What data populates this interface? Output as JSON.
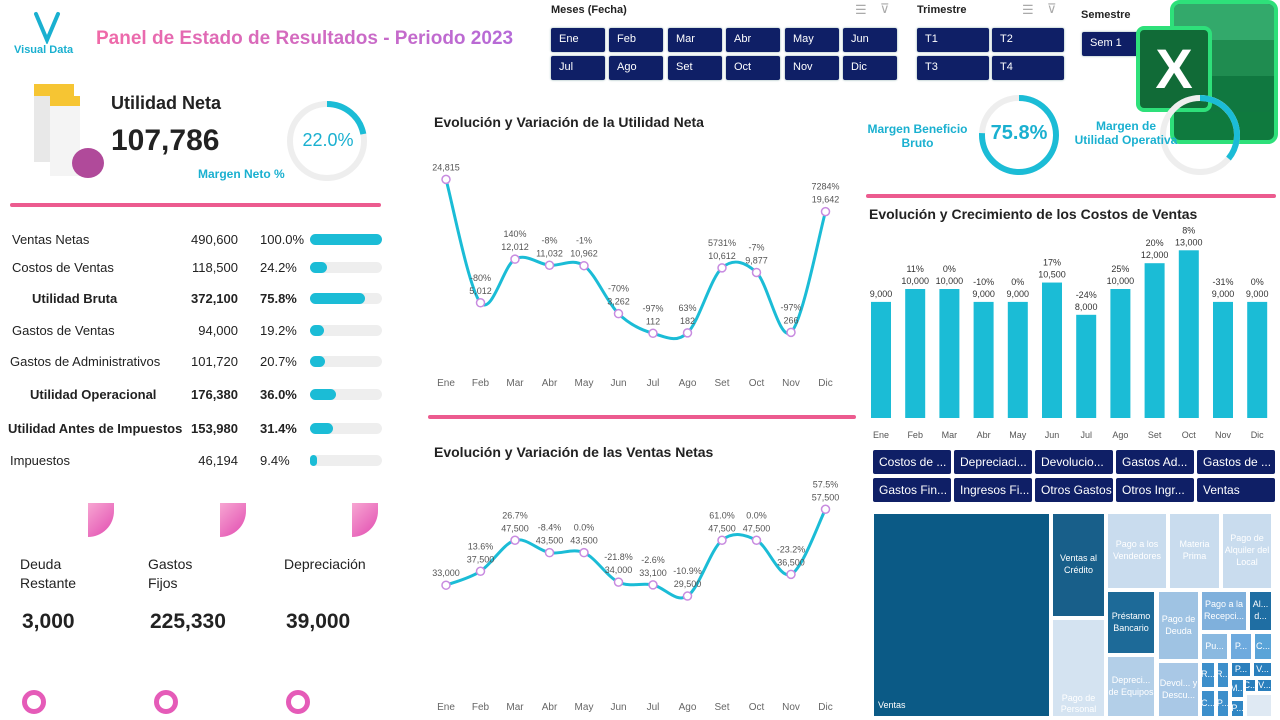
{
  "header": {
    "logo_text": "Visual Data",
    "title": "Panel de Estado de Resultados - Periodo 2023"
  },
  "slicers": {
    "months": {
      "title": "Meses (Fecha)",
      "items": [
        "Ene",
        "Feb",
        "Mar",
        "Abr",
        "May",
        "Jun",
        "Jul",
        "Ago",
        "Set",
        "Oct",
        "Nov",
        "Dic"
      ]
    },
    "quarters": {
      "title": "Trimestre",
      "items": [
        "T1",
        "T2",
        "T3",
        "T4"
      ]
    },
    "semester": {
      "title": "Semestre",
      "items": [
        "Sem 1"
      ]
    }
  },
  "net_income": {
    "label": "Utilidad Neta",
    "value": "107,786",
    "margin_label": "Margen Neto %",
    "margin_value": "22.0%",
    "margin_pct": 22.0
  },
  "income_rows": [
    {
      "label": "Ventas Netas",
      "value": "490,600",
      "pct": "100.0%",
      "fill": 100,
      "bold": false
    },
    {
      "label": "Costos de Ventas",
      "value": "118,500",
      "pct": "24.2%",
      "fill": 24.2,
      "bold": false
    },
    {
      "label": "Utilidad Bruta",
      "value": "372,100",
      "pct": "75.8%",
      "fill": 75.8,
      "bold": true
    },
    {
      "label": "Gastos de Ventas",
      "value": "94,000",
      "pct": "19.2%",
      "fill": 19.2,
      "bold": false
    },
    {
      "label": "Gastos de Administrativos",
      "value": "101,720",
      "pct": "20.7%",
      "fill": 20.7,
      "bold": false
    },
    {
      "label": "Utilidad Operacional",
      "value": "176,380",
      "pct": "36.0%",
      "fill": 36.0,
      "bold": true
    },
    {
      "label": "Utilidad Antes de Impuestos",
      "value": "153,980",
      "pct": "31.4%",
      "fill": 31.4,
      "bold": true
    },
    {
      "label": "Impuestos",
      "value": "46,194",
      "pct": "9.4%",
      "fill": 9.4,
      "bold": false
    }
  ],
  "bottom_kpis": [
    {
      "label_line1": "Deuda",
      "label_line2": "Restante",
      "value": "3,000"
    },
    {
      "label_line1": "Gastos",
      "label_line2": "Fijos",
      "value": "225,330"
    },
    {
      "label_line1": "Depreciación",
      "label_line2": "",
      "value": "39,000"
    }
  ],
  "gauges": {
    "gross": {
      "label_line1": "Margen Beneficio",
      "label_line2": "Bruto",
      "value": "75.8%",
      "pct": 75.8
    },
    "operating": {
      "label_line1": "Margen de",
      "label_line2": "Utilidad Operativa",
      "pct": 36.0
    }
  },
  "cost_buttons": [
    "Costos de ...",
    "Depreciaci...",
    "Devolucio...",
    "Gastos Ad...",
    "Gastos de ...",
    "Gastos Fin...",
    "Ingresos Fi...",
    "Otros Gastos",
    "Otros Ingr...",
    "Ventas"
  ],
  "treemap": [
    "Ventas",
    "Ventas al Crédito",
    "Pago de Personal",
    "Pago a los Vendedores",
    "Materia Prima",
    "Pago de Alquiler del Local",
    "Préstamo Bancario",
    "Depreci... de Equipos",
    "Pago de Deuda",
    "Devol... y Descu...",
    "Pago a la Recepci...",
    "Al... d...",
    "Pu...",
    "P...",
    "C...",
    "R...",
    "R...",
    "P...",
    "V...",
    "M...",
    "C...",
    "V...",
    "C...",
    "P...",
    "P..."
  ],
  "colors": {
    "accent": "#1bbcd6",
    "pink": "#ec5b8f",
    "slicer": "#0f1f66",
    "marker": "#c88be0"
  },
  "chart_data": [
    {
      "type": "line",
      "title": "Evolución y Variación de la Utilidad Neta",
      "categories": [
        "Ene",
        "Feb",
        "Mar",
        "Abr",
        "May",
        "Jun",
        "Jul",
        "Ago",
        "Set",
        "Oct",
        "Nov",
        "Dic"
      ],
      "values": [
        24815,
        5012,
        12012,
        11032,
        10962,
        3262,
        112,
        182,
        10612,
        9877,
        266,
        19642
      ],
      "value_labels": [
        "24,815",
        "5,012",
        "12,012",
        "11,032",
        "10,962",
        "3,262",
        "112",
        "182",
        "10,612",
        "9,877",
        "266",
        "19,642"
      ],
      "variation_labels": [
        "",
        "-80%",
        "140%",
        "-8%",
        "-1%",
        "-70%",
        "-97%",
        "63%",
        "5731%",
        "-7%",
        "-97%",
        "7284%"
      ],
      "ylim": [
        0,
        26000
      ],
      "grid": false
    },
    {
      "type": "line",
      "title": "Evolución y Variación de las Ventas Netas",
      "categories": [
        "Ene",
        "Feb",
        "Mar",
        "Abr",
        "May",
        "Jun",
        "Jul",
        "Ago",
        "Set",
        "Oct",
        "Nov",
        "Dic"
      ],
      "values": [
        33000,
        37500,
        47500,
        43500,
        43500,
        34000,
        33100,
        29500,
        47500,
        47500,
        36500,
        57500
      ],
      "value_labels": [
        "33,000",
        "37,500",
        "47,500",
        "43,500",
        "43,500",
        "34,000",
        "33,100",
        "29,500",
        "47,500",
        "47,500",
        "36,500",
        "57,500"
      ],
      "variation_labels": [
        "",
        "13.6%",
        "26.7%",
        "-8.4%",
        "0.0%",
        "-21.8%",
        "-2.6%",
        "-10.9%",
        "61.0%",
        "0.0%",
        "-23.2%",
        "57.5%"
      ],
      "ylim": [
        0,
        60000
      ],
      "grid": false
    },
    {
      "type": "bar",
      "title": "Evolución y Crecimiento de los Costos de Ventas",
      "categories": [
        "Ene",
        "Feb",
        "Mar",
        "Abr",
        "May",
        "Jun",
        "Jul",
        "Ago",
        "Set",
        "Oct",
        "Nov",
        "Dic"
      ],
      "values": [
        9000,
        10000,
        10000,
        9000,
        9000,
        10500,
        8000,
        10000,
        12000,
        13000,
        9000,
        9000
      ],
      "value_labels": [
        "9,000",
        "10,000",
        "10,000",
        "9,000",
        "9,000",
        "10,500",
        "8,000",
        "10,000",
        "12,000",
        "13,000",
        "9,000",
        "9,000"
      ],
      "variation_labels": [
        "",
        "11%",
        "0%",
        "-10%",
        "0%",
        "17%",
        "-24%",
        "25%",
        "20%",
        "8%",
        "-31%",
        "0%"
      ],
      "ylim": [
        0,
        14000
      ],
      "grid": false
    }
  ]
}
